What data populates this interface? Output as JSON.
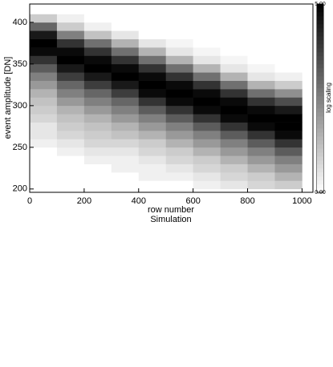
{
  "chart_data": {
    "type": "density",
    "xlabel": "row number",
    "subtitle": "Simulation",
    "ylabel": "event amplitude [DN]",
    "colorbar_label": "log scaling",
    "xlim": [
      0,
      1040
    ],
    "ylim": [
      196,
      422
    ],
    "xticks": [
      0,
      200,
      400,
      600,
      800,
      1000
    ],
    "yticks": [
      200,
      250,
      300,
      350,
      400
    ],
    "clim": [
      0,
      5
    ],
    "cticks": [
      {
        "value": 5,
        "label": "5.00"
      },
      {
        "value": 0,
        "label": "0.00"
      }
    ],
    "xbins": [
      0,
      100,
      200,
      300,
      400,
      500,
      600,
      700,
      800,
      900,
      1000
    ],
    "ybins": [
      200,
      210,
      220,
      230,
      240,
      250,
      260,
      270,
      280,
      290,
      300,
      310,
      320,
      330,
      340,
      350,
      360,
      370,
      380,
      390,
      400,
      410,
      420
    ],
    "values": [
      [
        0,
        0,
        0,
        0,
        0,
        0.3,
        0.5,
        0.5,
        0.8,
        1,
        1.2,
        1.5,
        2,
        2.5,
        3.2,
        4,
        4.8,
        5,
        4.5,
        3,
        1,
        0
      ],
      [
        0,
        0,
        0,
        0,
        0.3,
        0.5,
        0.8,
        1,
        1.2,
        1.5,
        2,
        2.5,
        3,
        3.8,
        4.5,
        5,
        4.8,
        4,
        2.5,
        1,
        0.3,
        0
      ],
      [
        0,
        0,
        0,
        0.3,
        0.5,
        0.8,
        1,
        1.2,
        1.5,
        2,
        2.5,
        3,
        3.8,
        4.5,
        5,
        4.8,
        4,
        2.8,
        1.2,
        0.3,
        0,
        0
      ],
      [
        0,
        0,
        0.3,
        0.3,
        0.5,
        0.8,
        1.2,
        1.5,
        2,
        2.5,
        3,
        3.8,
        4.5,
        5,
        4.8,
        4,
        2.8,
        1.5,
        0.5,
        0,
        0,
        0
      ],
      [
        0,
        0.3,
        0.3,
        0.5,
        0.8,
        1,
        1.5,
        2,
        2.5,
        3.2,
        4,
        4.8,
        5,
        4.8,
        4,
        2.8,
        1.5,
        0.5,
        0,
        0,
        0,
        0
      ],
      [
        0,
        0.3,
        0.5,
        0.8,
        1,
        1.5,
        2,
        2.5,
        3.2,
        4,
        4.8,
        5,
        4.8,
        4,
        2.8,
        1.5,
        0.5,
        0.2,
        0,
        0,
        0,
        0
      ],
      [
        0.3,
        0.5,
        0.8,
        1,
        1.5,
        2,
        2.5,
        3.2,
        4,
        4.8,
        5,
        4.8,
        4,
        2.8,
        1.5,
        0.5,
        0.2,
        0,
        0,
        0,
        0,
        0
      ],
      [
        0.5,
        0.8,
        1,
        1.5,
        2,
        2.5,
        3.2,
        4,
        4.8,
        5,
        4.8,
        4,
        2.8,
        1.5,
        0.5,
        0.2,
        0,
        0,
        0,
        0,
        0,
        0
      ],
      [
        0.8,
        1,
        1.5,
        2,
        2.5,
        3.2,
        4,
        4.8,
        5,
        4.8,
        4,
        2.8,
        1.5,
        0.5,
        0.2,
        0,
        0,
        0,
        0,
        0,
        0,
        0
      ],
      [
        1,
        1.5,
        2,
        2.5,
        3.2,
        4,
        4.8,
        5,
        5,
        4.5,
        3.5,
        2.2,
        1,
        0.3,
        0,
        0,
        0,
        0,
        0,
        0,
        0,
        0
      ]
    ]
  }
}
